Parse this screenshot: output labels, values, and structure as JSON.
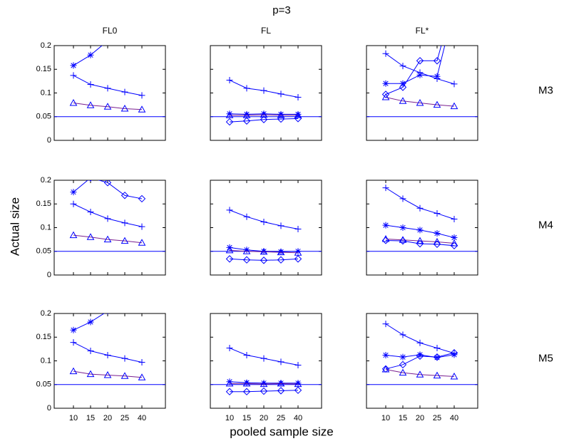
{
  "title": "p=3",
  "xlabel": "pooled sample size",
  "ylabel": "Actual size",
  "categories": [
    "10",
    "15",
    "20",
    "25",
    "40"
  ],
  "chart_data": [
    {
      "type": "line",
      "title": "FL0",
      "ylim": [
        0,
        0.2
      ],
      "yticks": [
        0,
        0.05,
        0.1,
        0.15,
        0.2
      ],
      "reference_line": 0.05,
      "series": [
        {
          "marker": "plus",
          "color": "#0000ff",
          "values": [
            0.137,
            0.118,
            0.11,
            0.102,
            0.095
          ]
        },
        {
          "marker": "star",
          "color": "#0000ff",
          "values": [
            0.158,
            0.18,
            0.21,
            null,
            null
          ]
        },
        {
          "marker": "triangle",
          "color": "#7a1f8f",
          "values": [
            0.079,
            0.074,
            0.071,
            0.067,
            0.065
          ]
        }
      ]
    },
    {
      "type": "line",
      "title": "FL",
      "ylim": [
        0,
        0.2
      ],
      "yticks": [
        0,
        0.05,
        0.1,
        0.15,
        0.2
      ],
      "reference_line": 0.05,
      "series": [
        {
          "marker": "plus",
          "color": "#0000ff",
          "values": [
            0.127,
            0.11,
            0.105,
            0.098,
            0.091
          ]
        },
        {
          "marker": "star",
          "color": "#0000ff",
          "values": [
            0.056,
            0.055,
            0.056,
            0.055,
            0.055
          ]
        },
        {
          "marker": "triangle",
          "color": "#7a1f8f",
          "values": [
            0.053,
            0.053,
            0.054,
            0.053,
            0.053
          ]
        },
        {
          "marker": "diamond",
          "color": "#0000ff",
          "values": [
            0.039,
            0.041,
            0.044,
            0.045,
            0.046
          ]
        }
      ]
    },
    {
      "type": "line",
      "title": "FL*",
      "row_label": "M3",
      "ylim": [
        0,
        0.2
      ],
      "yticks": [
        0,
        0.05,
        0.1,
        0.15,
        0.2
      ],
      "reference_line": 0.05,
      "series": [
        {
          "marker": "plus",
          "color": "#0000ff",
          "values": [
            0.183,
            0.157,
            0.143,
            0.13,
            0.119
          ]
        },
        {
          "marker": "star",
          "color": "#0000ff",
          "values": [
            0.12,
            0.12,
            0.138,
            0.135,
            0.28
          ]
        },
        {
          "marker": "triangle",
          "color": "#7a1f8f",
          "values": [
            0.091,
            0.083,
            0.079,
            0.075,
            0.072
          ]
        },
        {
          "marker": "diamond",
          "color": "#0000ff",
          "values": [
            0.097,
            0.112,
            0.168,
            0.168,
            0.3
          ]
        }
      ]
    },
    {
      "type": "line",
      "ylim": [
        0,
        0.2
      ],
      "yticks": [
        0,
        0.05,
        0.1,
        0.15,
        0.2
      ],
      "reference_line": 0.05,
      "series": [
        {
          "marker": "plus",
          "color": "#0000ff",
          "values": [
            0.15,
            0.133,
            0.119,
            0.11,
            0.102
          ]
        },
        {
          "marker": "star",
          "color": "#0000ff",
          "values": [
            0.175,
            0.205,
            null,
            null,
            null
          ]
        },
        {
          "marker": "triangle",
          "color": "#7a1f8f",
          "values": [
            0.084,
            0.08,
            0.075,
            0.072,
            0.068
          ]
        },
        {
          "marker": "diamond",
          "color": "#0000ff",
          "values": [
            null,
            0.205,
            0.195,
            0.168,
            0.161
          ]
        }
      ]
    },
    {
      "type": "line",
      "ylim": [
        0,
        0.2
      ],
      "yticks": [
        0,
        0.05,
        0.1,
        0.15,
        0.2
      ],
      "reference_line": 0.05,
      "series": [
        {
          "marker": "plus",
          "color": "#0000ff",
          "values": [
            0.137,
            0.123,
            0.112,
            0.104,
            0.097
          ]
        },
        {
          "marker": "star",
          "color": "#0000ff",
          "values": [
            0.058,
            0.053,
            0.05,
            0.049,
            0.05
          ]
        },
        {
          "marker": "triangle",
          "color": "#7a1f8f",
          "values": [
            0.052,
            0.05,
            0.049,
            0.048,
            0.047
          ]
        },
        {
          "marker": "diamond",
          "color": "#0000ff",
          "values": [
            0.034,
            0.032,
            0.031,
            0.032,
            0.034
          ]
        }
      ]
    },
    {
      "type": "line",
      "row_label": "M4",
      "ylim": [
        0,
        0.2
      ],
      "yticks": [
        0,
        0.05,
        0.1,
        0.15,
        0.2
      ],
      "reference_line": 0.05,
      "series": [
        {
          "marker": "plus",
          "color": "#0000ff",
          "values": [
            0.184,
            0.161,
            0.141,
            0.13,
            0.118
          ]
        },
        {
          "marker": "star",
          "color": "#0000ff",
          "values": [
            0.105,
            0.1,
            0.095,
            0.088,
            0.079
          ]
        },
        {
          "marker": "triangle",
          "color": "#7a1f8f",
          "values": [
            0.076,
            0.074,
            0.072,
            0.07,
            0.067
          ]
        },
        {
          "marker": "diamond",
          "color": "#0000ff",
          "values": [
            0.073,
            0.072,
            0.066,
            0.065,
            0.062
          ]
        }
      ]
    },
    {
      "type": "line",
      "ylim": [
        0,
        0.2
      ],
      "yticks": [
        0,
        0.05,
        0.1,
        0.15,
        0.2
      ],
      "reference_line": 0.05,
      "series": [
        {
          "marker": "plus",
          "color": "#0000ff",
          "values": [
            0.139,
            0.121,
            0.112,
            0.105,
            0.097
          ]
        },
        {
          "marker": "star",
          "color": "#0000ff",
          "values": [
            0.165,
            0.182,
            0.205,
            null,
            null
          ]
        },
        {
          "marker": "triangle",
          "color": "#7a1f8f",
          "values": [
            0.078,
            0.072,
            0.07,
            0.068,
            0.065
          ]
        }
      ]
    },
    {
      "type": "line",
      "ylim": [
        0,
        0.2
      ],
      "yticks": [
        0,
        0.05,
        0.1,
        0.15,
        0.2
      ],
      "reference_line": 0.05,
      "series": [
        {
          "marker": "plus",
          "color": "#0000ff",
          "values": [
            0.127,
            0.112,
            0.105,
            0.098,
            0.091
          ]
        },
        {
          "marker": "star",
          "color": "#0000ff",
          "values": [
            0.056,
            0.054,
            0.053,
            0.053,
            0.053
          ]
        },
        {
          "marker": "triangle",
          "color": "#7a1f8f",
          "values": [
            0.052,
            0.052,
            0.051,
            0.052,
            0.051
          ]
        },
        {
          "marker": "diamond",
          "color": "#0000ff",
          "values": [
            0.035,
            0.035,
            0.036,
            0.037,
            0.038
          ]
        }
      ]
    },
    {
      "type": "line",
      "row_label": "M5",
      "ylim": [
        0,
        0.2
      ],
      "yticks": [
        0,
        0.05,
        0.1,
        0.15,
        0.2
      ],
      "reference_line": 0.05,
      "series": [
        {
          "marker": "plus",
          "color": "#0000ff",
          "values": [
            0.178,
            0.155,
            0.138,
            0.127,
            0.116
          ]
        },
        {
          "marker": "star",
          "color": "#0000ff",
          "values": [
            0.112,
            0.108,
            0.113,
            0.107,
            0.113
          ]
        },
        {
          "marker": "triangle",
          "color": "#7a1f8f",
          "values": [
            0.082,
            0.075,
            0.071,
            0.069,
            0.067
          ]
        },
        {
          "marker": "diamond",
          "color": "#0000ff",
          "values": [
            0.083,
            0.092,
            0.11,
            0.108,
            0.117
          ]
        }
      ]
    }
  ]
}
